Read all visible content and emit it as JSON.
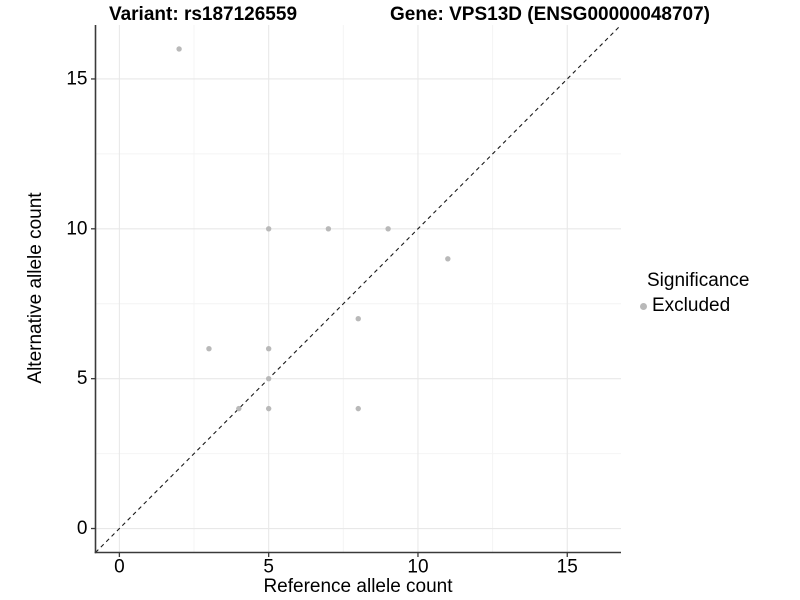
{
  "chart_data": {
    "type": "scatter",
    "title_left": "Variant: rs187126559",
    "title_right": "Gene: VPS13D (ENSG00000048707)",
    "xlabel": "Reference allele count",
    "ylabel": "Alternative allele count",
    "xlim": [
      -0.8,
      16.8
    ],
    "ylim": [
      -0.8,
      16.8
    ],
    "x_ticks": [
      0,
      5,
      10,
      15
    ],
    "y_ticks": [
      0,
      5,
      10,
      15
    ],
    "x_minor_ticks": [
      2.5,
      7.5,
      12.5
    ],
    "y_minor_ticks": [
      2.5,
      7.5,
      12.5
    ],
    "grid": "major and minor gridlines on white background",
    "legend": {
      "title": "Significance",
      "position": "right",
      "items": [
        {
          "label": "Excluded",
          "color": "#b9b9b9"
        }
      ]
    },
    "series": [
      {
        "name": "Excluded",
        "color": "#b9b9b9",
        "points": [
          [
            2,
            16
          ],
          [
            5,
            10
          ],
          [
            7,
            10
          ],
          [
            9,
            10
          ],
          [
            11,
            9
          ],
          [
            8,
            7
          ],
          [
            3,
            6
          ],
          [
            5,
            6
          ],
          [
            5,
            5
          ],
          [
            4,
            4
          ],
          [
            5,
            4
          ],
          [
            8,
            4
          ]
        ]
      }
    ],
    "reference_line": {
      "type": "identity y = x",
      "style": "dashed",
      "color": "#1a1a1a"
    },
    "colors": {
      "grid_major": "#e8e8e8",
      "grid_minor": "#f4f4f4",
      "axis": "#3a3a3a",
      "tick_text": "#000000",
      "background": "#ffffff"
    }
  }
}
